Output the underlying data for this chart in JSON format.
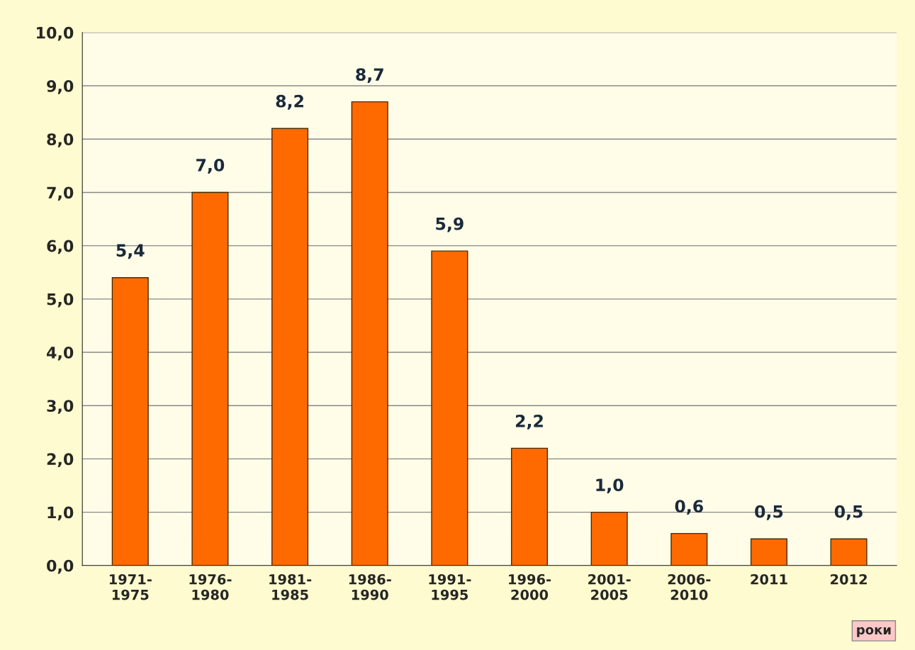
{
  "chart_data": {
    "type": "bar",
    "categories": [
      "1971-\n1975",
      "1976-\n1980",
      "1981-\n1985",
      "1986-\n1990",
      "1991-\n1995",
      "1996-\n2000",
      "2001-\n2005",
      "2006-\n2010",
      "2011",
      "2012"
    ],
    "values": [
      5.4,
      7.0,
      8.2,
      8.7,
      5.9,
      2.2,
      1.0,
      0.6,
      0.5,
      0.5
    ],
    "value_labels": [
      "5,4",
      "7,0",
      "8,2",
      "8,7",
      "5,9",
      "2,2",
      "1,0",
      "0,6",
      "0,5",
      "0,5"
    ],
    "color": "#ff6a00",
    "ylim": [
      0,
      10
    ],
    "yticks": [
      {
        "value": 0,
        "label": "0,0"
      },
      {
        "value": 1,
        "label": "1,0"
      },
      {
        "value": 2,
        "label": "2,0"
      },
      {
        "value": 3,
        "label": "3,0"
      },
      {
        "value": 4,
        "label": "4,0"
      },
      {
        "value": 5,
        "label": "5,0"
      },
      {
        "value": 6,
        "label": "6,0"
      },
      {
        "value": 7,
        "label": "7,0"
      },
      {
        "value": 8,
        "label": "8,0"
      },
      {
        "value": 9,
        "label": "9,0"
      },
      {
        "value": 10,
        "label": "10,0"
      }
    ],
    "grid": "y",
    "annotations": [
      "роки"
    ]
  }
}
